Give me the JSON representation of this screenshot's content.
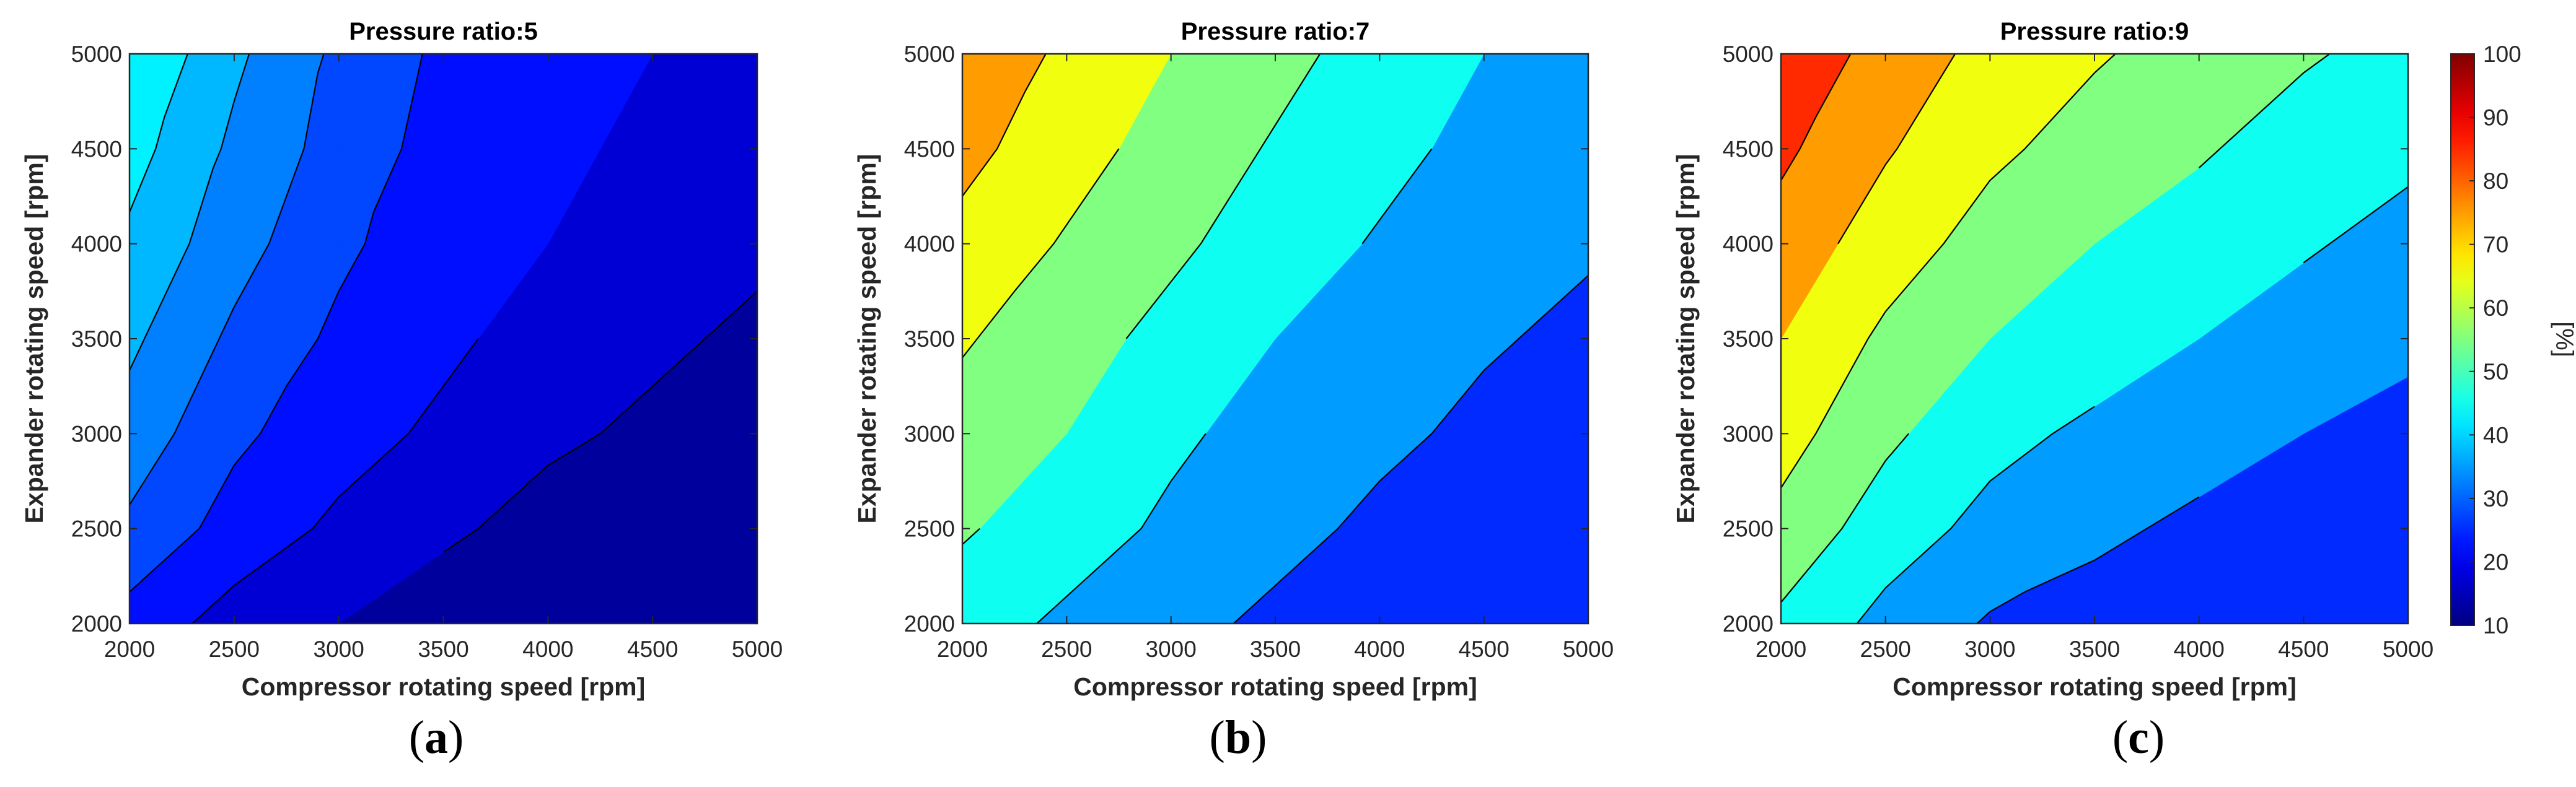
{
  "chart_data": [
    {
      "type": "contourf",
      "panel": "(a)",
      "title": "Pressure ratio:5",
      "xlabel": "Compressor rotating speed [rpm]",
      "ylabel": "Expander rotating speed [rpm]",
      "xlim": [
        2000,
        5000
      ],
      "ylim": [
        2000,
        5000
      ],
      "xticks": [
        "2000",
        "2500",
        "3000",
        "3500",
        "4000",
        "4500",
        "5000"
      ],
      "yticks": [
        "2000",
        "2500",
        "3000",
        "3500",
        "4000",
        "4500",
        "5000"
      ],
      "z_levels": [
        10,
        15,
        20,
        25,
        30,
        35,
        40,
        45
      ],
      "x_axis": [
        2000,
        2500,
        3000,
        3500,
        4000,
        4500,
        5000
      ],
      "y_axis": [
        2000,
        2500,
        3000,
        3500,
        4000,
        4500,
        5000
      ],
      "z_grid": [
        [
          23,
          18,
          15,
          12,
          10,
          10,
          10
        ],
        [
          29,
          23,
          19,
          16,
          13,
          12,
          11
        ],
        [
          33,
          26,
          22,
          19,
          16,
          14,
          12
        ],
        [
          36,
          29,
          24,
          21,
          18,
          16,
          14
        ],
        [
          39,
          32,
          26,
          22,
          20,
          18,
          16
        ],
        [
          42,
          34,
          28,
          23,
          21,
          19,
          17
        ],
        [
          45,
          36,
          29,
          24,
          22,
          20,
          18
        ]
      ]
    },
    {
      "type": "contourf",
      "panel": "(b)",
      "title": "Pressure ratio:7",
      "xlabel": "Compressor rotating speed [rpm]",
      "ylabel": "Expander rotating speed [rpm]",
      "xlim": [
        2000,
        5000
      ],
      "ylim": [
        2000,
        5000
      ],
      "xticks": [
        "2000",
        "2500",
        "3000",
        "3500",
        "4000",
        "4500",
        "5000"
      ],
      "yticks": [
        "2000",
        "2500",
        "3000",
        "3500",
        "4000",
        "4500",
        "5000"
      ],
      "z_levels": [
        20,
        30,
        40,
        50,
        60,
        70,
        80
      ],
      "x_axis": [
        2000,
        2500,
        3000,
        3500,
        4000,
        4500,
        5000
      ],
      "y_axis": [
        2000,
        2500,
        3000,
        3500,
        4000,
        4500,
        5000
      ],
      "z_grid": [
        [
          45,
          38,
          33,
          28,
          22,
          18,
          15
        ],
        [
          51,
          45,
          38,
          33,
          28,
          24,
          21
        ],
        [
          56,
          50,
          42,
          36,
          32,
          28,
          25
        ],
        [
          61,
          54,
          47,
          40,
          35,
          31,
          28
        ],
        [
          67,
          59,
          52,
          45,
          39,
          34,
          31
        ],
        [
          73,
          64,
          56,
          49,
          43,
          37,
          33
        ],
        [
          78,
          68,
          60,
          53,
          46,
          40,
          36
        ]
      ]
    },
    {
      "type": "contourf",
      "panel": "(c)",
      "title": "Pressure ratio:9",
      "xlabel": "Compressor rotating speed [rpm]",
      "ylabel": "Expander rotating speed [rpm]",
      "xlim": [
        2000,
        5000
      ],
      "ylim": [
        2000,
        5000
      ],
      "xticks": [
        "2000",
        "2500",
        "3000",
        "3500",
        "4000",
        "4500",
        "5000"
      ],
      "yticks": [
        "2000",
        "2500",
        "3000",
        "3500",
        "4000",
        "4500",
        "5000"
      ],
      "z_levels": [
        20,
        30,
        40,
        50,
        60,
        70,
        80,
        90
      ],
      "x_axis": [
        2000,
        2500,
        3000,
        3500,
        4000,
        4500,
        5000
      ],
      "y_axis": [
        2000,
        2500,
        3000,
        3500,
        4000,
        4500,
        5000
      ],
      "z_grid": [
        [
          48,
          37,
          29,
          26,
          23,
          21,
          19
        ],
        [
          57,
          45,
          37,
          32,
          28,
          25,
          23
        ],
        [
          64,
          52,
          43,
          38,
          34,
          30,
          27
        ],
        [
          70,
          58,
          50,
          45,
          40,
          36,
          32
        ],
        [
          76,
          65,
          56,
          50,
          46,
          41,
          37
        ],
        [
          82,
          71,
          62,
          56,
          51,
          46,
          42
        ],
        [
          88,
          76,
          67,
          61,
          56,
          51,
          47
        ]
      ]
    }
  ],
  "colorbar": {
    "min": 10,
    "max": 100,
    "ticks": [
      "10",
      "20",
      "30",
      "40",
      "50",
      "60",
      "70",
      "80",
      "90",
      "100"
    ],
    "label": "[%]"
  }
}
